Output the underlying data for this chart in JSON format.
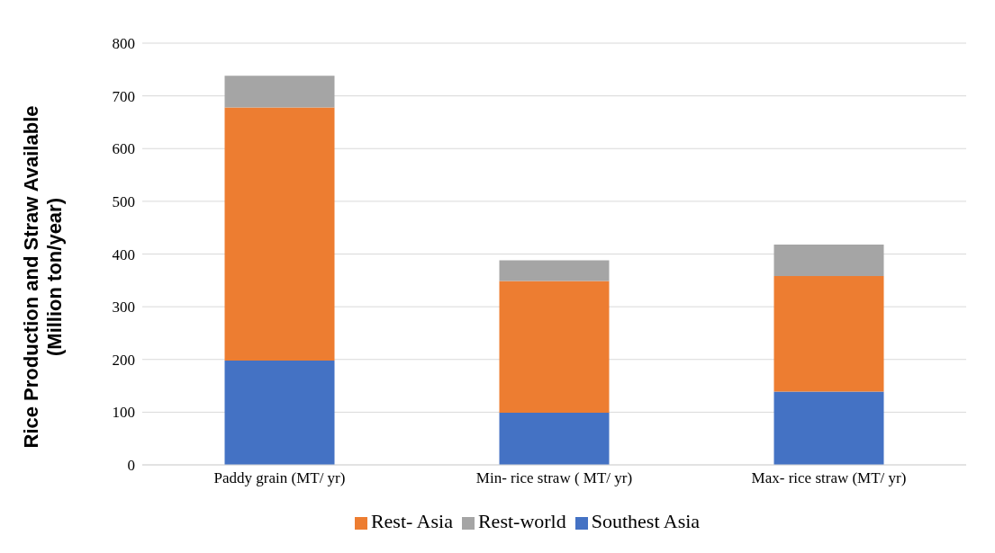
{
  "chart_data": {
    "type": "bar",
    "stacked": true,
    "ylabel": "Rice Production and Straw Available\n(Million ton/year)",
    "categories": [
      "Paddy grain (MT/ yr)",
      "Min- rice straw ( MT/ yr)",
      "Max- rice straw (MT/ yr)"
    ],
    "series": [
      {
        "name": "Southest Asia",
        "color": "#4472c4",
        "values": [
          198,
          99,
          139
        ]
      },
      {
        "name": "Rest- Asia",
        "color": "#ed7d31",
        "values": [
          480,
          250,
          219
        ]
      },
      {
        "name": "Rest-world",
        "color": "#a5a5a5",
        "values": [
          60,
          39,
          60
        ]
      }
    ],
    "ylim": [
      0,
      800
    ],
    "yticks": [
      0,
      100,
      200,
      300,
      400,
      500,
      600,
      700,
      800
    ],
    "grid": "y",
    "legend": "bottom"
  }
}
